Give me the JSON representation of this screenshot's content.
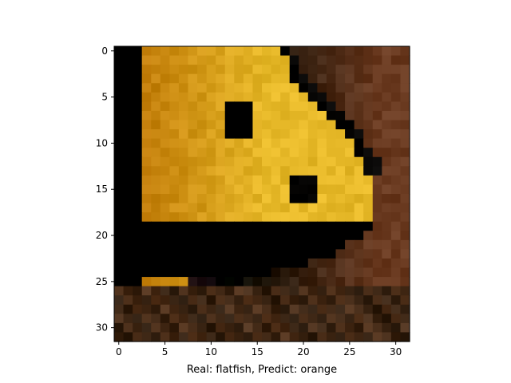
{
  "chart_data": {
    "type": "heatmap",
    "title": "",
    "xlabel": "Real: flatfish, Predict: orange",
    "ylabel": "",
    "x_ticks": [
      0,
      5,
      10,
      15,
      20,
      25,
      30
    ],
    "y_ticks": [
      0,
      5,
      10,
      15,
      20,
      25,
      30
    ],
    "x_tick_labels": [
      "0",
      "5",
      "10",
      "15",
      "20",
      "25",
      "30"
    ],
    "y_tick_labels": [
      "0",
      "5",
      "10",
      "15",
      "20",
      "25",
      "30"
    ],
    "xlim": [
      -0.5,
      31.5
    ],
    "ylim": [
      31.5,
      -0.5
    ],
    "grid": false,
    "image_size": [
      32,
      32
    ],
    "image_description": "Low-resolution pixelated photo of an orange/yellow fish head in profile facing right, with a dark eye, against a dark brown background.",
    "colors": {
      "fish_light": "#f0c830",
      "fish_mid": "#e0a010",
      "fish_dark": "#c07a08",
      "highlight": "#f6e6a8",
      "background_dark": "#2a1a0c",
      "background_brown": "#6a3a20",
      "bottom_mottled": "#5a3820"
    }
  }
}
